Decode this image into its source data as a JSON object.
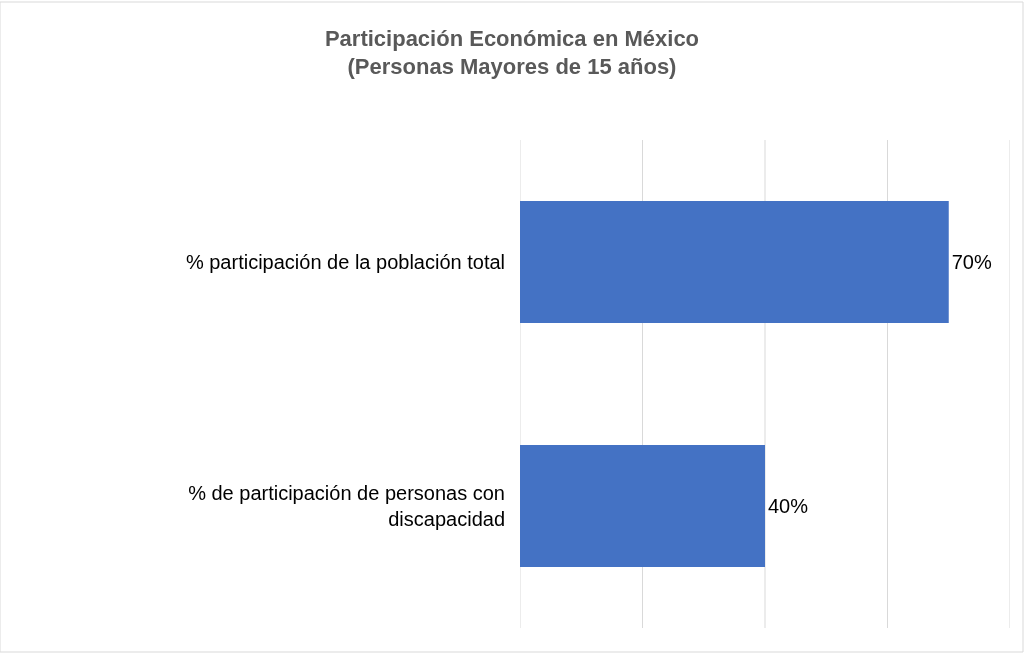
{
  "chart_data": {
    "type": "bar",
    "orientation": "horizontal",
    "title": "Participación Económica en México\n(Personas Mayores de 15 años)",
    "categories": [
      "% participación de la población total",
      "% de participación de personas con discapacidad"
    ],
    "values": [
      70,
      40
    ],
    "value_labels": [
      "70%",
      "40%"
    ],
    "color": "#4472c4",
    "xlim": [
      0,
      80
    ],
    "xticks": [
      {
        "value": 0,
        "label": null
      },
      {
        "value": 20,
        "label": null
      },
      {
        "value": 40,
        "label": null
      },
      {
        "value": 60,
        "label": null
      },
      {
        "value": 80,
        "label": null
      }
    ],
    "grid": "x",
    "tick_labels": "y"
  }
}
